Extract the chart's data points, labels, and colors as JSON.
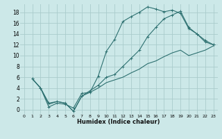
{
  "bg_color": "#cce8e8",
  "grid_color": "#aacccc",
  "line_color": "#2d7070",
  "xlabel": "Humidex (Indice chaleur)",
  "xlim": [
    -0.5,
    23.5
  ],
  "ylim": [
    -0.8,
    19.5
  ],
  "xticks": [
    0,
    1,
    2,
    3,
    4,
    5,
    6,
    7,
    8,
    9,
    10,
    11,
    12,
    13,
    14,
    15,
    16,
    17,
    18,
    19,
    20,
    21,
    22,
    23
  ],
  "yticks": [
    0,
    2,
    4,
    6,
    8,
    10,
    12,
    14,
    16,
    18
  ],
  "line1_x": [
    1,
    2,
    3,
    4,
    5,
    6,
    7,
    8,
    9,
    10,
    11,
    12,
    13,
    14,
    15,
    16,
    17,
    18,
    19,
    20,
    21,
    22,
    23
  ],
  "line1_y": [
    5.7,
    4.0,
    0.5,
    1.2,
    1.0,
    0.3,
    3.0,
    3.2,
    6.2,
    10.8,
    13.0,
    16.3,
    17.2,
    18.0,
    19.0,
    18.6,
    18.1,
    18.4,
    17.8,
    15.0,
    14.0,
    12.5,
    12.0
  ],
  "line2_x": [
    1,
    2,
    3,
    4,
    5,
    6,
    7,
    8,
    9,
    10,
    11,
    12,
    13,
    14,
    15,
    16,
    17,
    18,
    19,
    20,
    21,
    22,
    23
  ],
  "line2_y": [
    5.7,
    4.0,
    1.2,
    1.5,
    1.2,
    -0.3,
    2.5,
    3.5,
    4.5,
    6.0,
    6.5,
    8.0,
    9.5,
    11.0,
    13.5,
    15.2,
    16.8,
    17.5,
    18.2,
    15.2,
    14.0,
    12.8,
    12.0
  ],
  "line3_x": [
    1,
    2,
    3,
    4,
    5,
    6,
    7,
    8,
    9,
    10,
    11,
    12,
    13,
    14,
    15,
    16,
    17,
    18,
    19,
    20,
    21,
    22,
    23
  ],
  "line3_y": [
    5.7,
    4.0,
    1.0,
    1.5,
    1.2,
    -0.3,
    2.5,
    3.2,
    4.0,
    5.0,
    5.5,
    6.0,
    6.8,
    7.5,
    8.5,
    9.0,
    9.8,
    10.5,
    11.0,
    10.0,
    10.5,
    11.0,
    11.8
  ]
}
